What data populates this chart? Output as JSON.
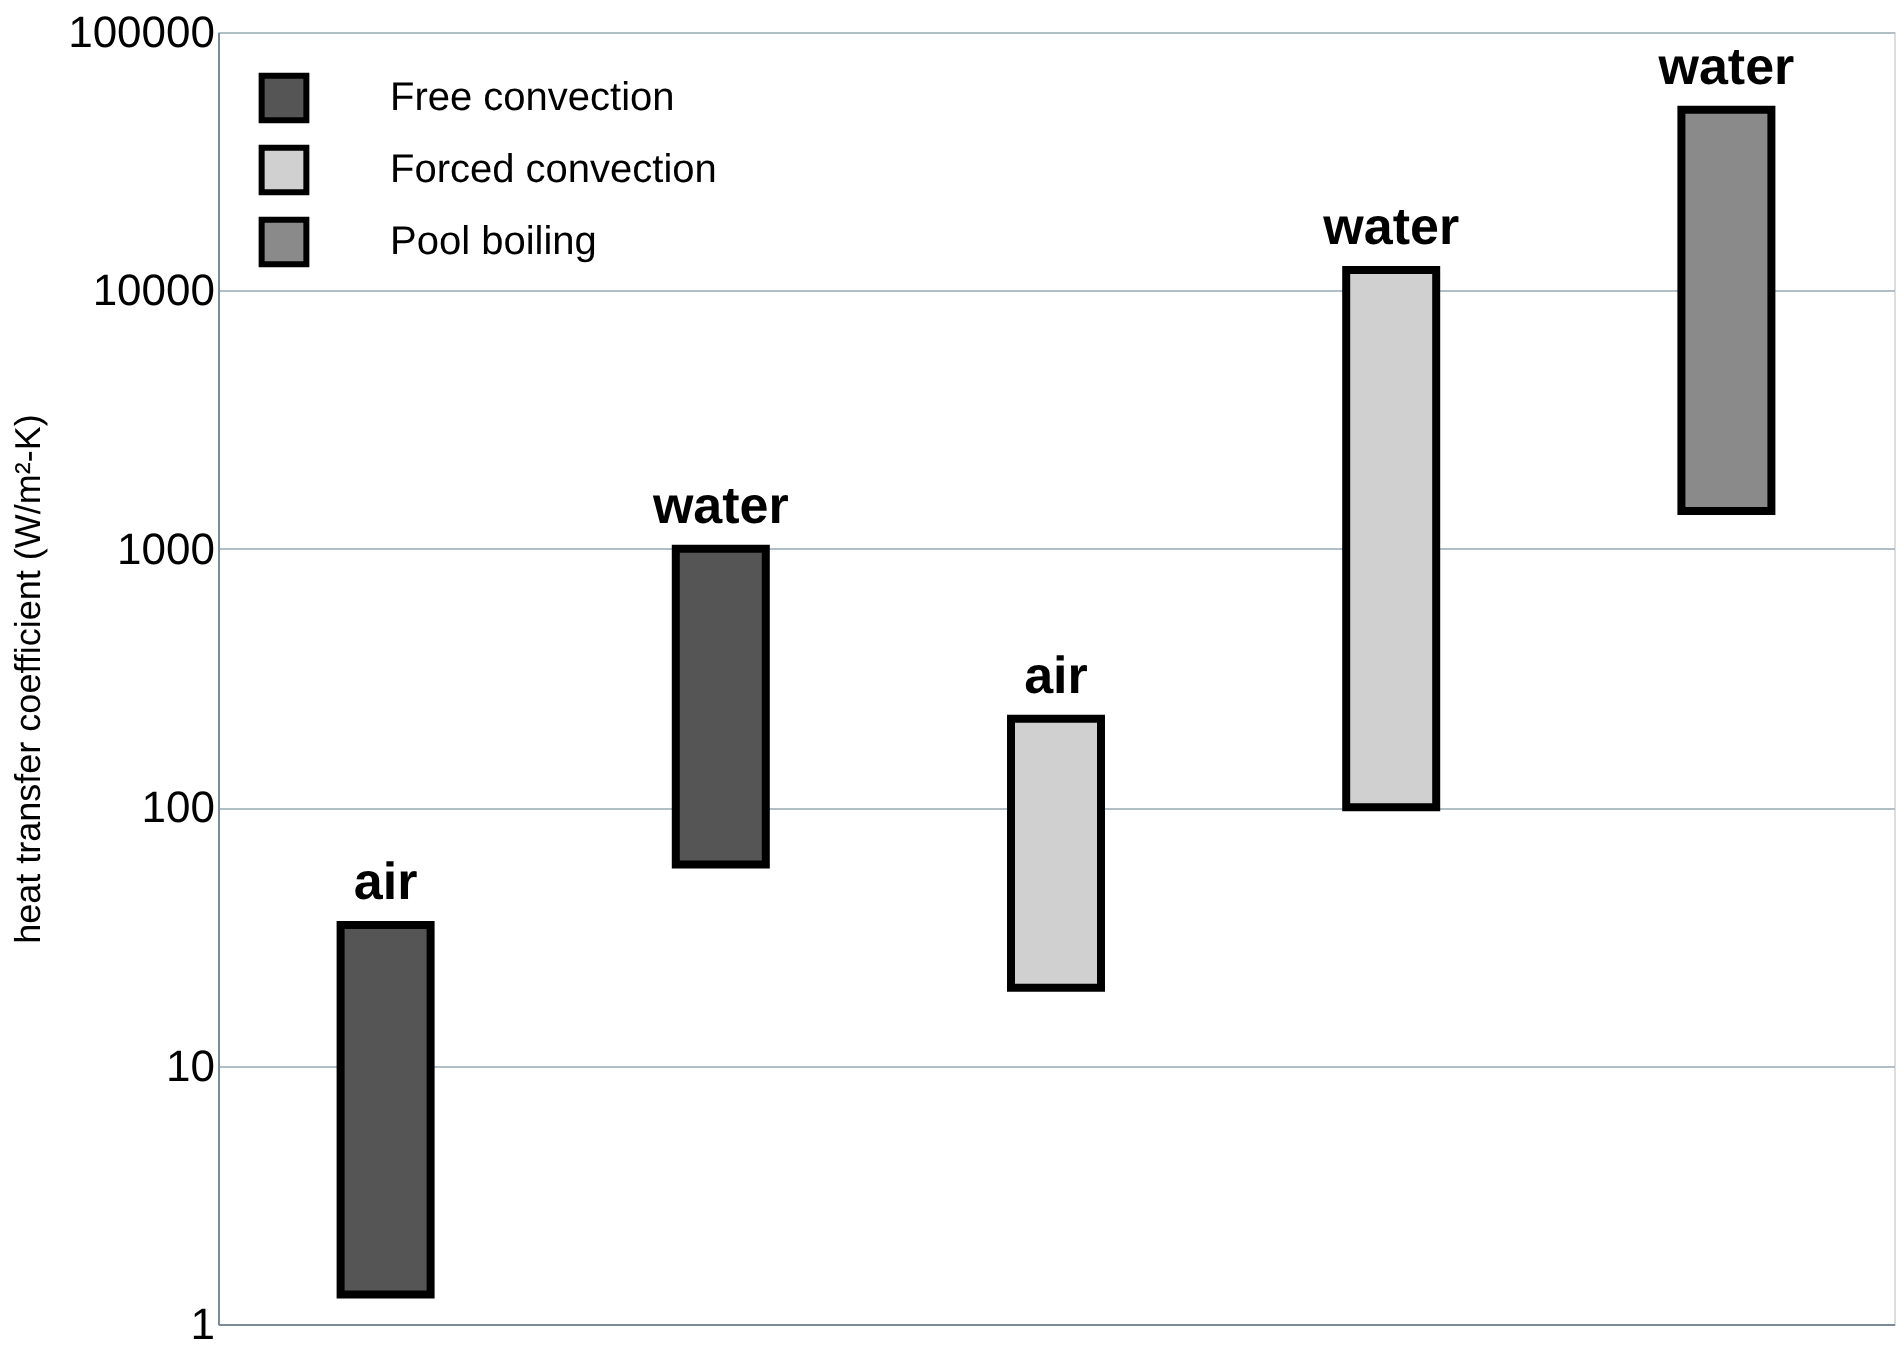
{
  "chart_data": {
    "type": "bar",
    "ylabel": "heat transfer coefficient (W/m²-K)",
    "categories": [
      null,
      null,
      null,
      null,
      null
    ],
    "series": [
      {
        "name": "Free convection",
        "color": "#555555",
        "base": [
          1.3,
          60,
          null,
          null,
          null
        ],
        "values": [
          33.7,
          940,
          null,
          null,
          null
        ],
        "value_labels": [
          "air",
          "water",
          null,
          null,
          null
        ]
      },
      {
        "name": "Forced convection",
        "color": "#d0d0d0",
        "base": [
          null,
          null,
          20,
          100,
          null
        ],
        "values": [
          null,
          null,
          200,
          11900,
          null
        ],
        "value_labels": [
          null,
          null,
          "air",
          "water",
          null
        ]
      },
      {
        "name": "Pool boiling",
        "color": "#8a8a8a",
        "base": [
          null,
          null,
          null,
          null,
          1400
        ],
        "values": [
          null,
          null,
          null,
          null,
          48600
        ],
        "value_labels": [
          null,
          null,
          null,
          null,
          "water"
        ]
      }
    ],
    "log": "y",
    "ylim": [
      1,
      100000
    ],
    "yticks": [
      1,
      10,
      100,
      1000,
      10000,
      100000
    ],
    "grid": "y",
    "legend": "top left",
    "tick_labels": "y"
  }
}
